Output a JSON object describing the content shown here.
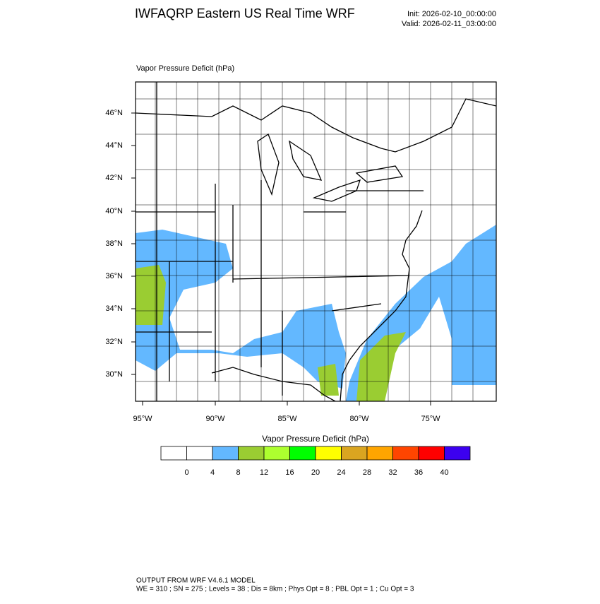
{
  "header": {
    "title": "IWFAQRP Eastern US Real Time WRF",
    "init": "Init: 2026-02-10_00:00:00",
    "valid": "Valid: 2026-02-11_03:00:00"
  },
  "map": {
    "subtitle": "Vapor Pressure Deficit   (hPa)",
    "lat_labels": [
      "46°N",
      "44°N",
      "42°N",
      "40°N",
      "38°N",
      "36°N",
      "34°N",
      "32°N",
      "30°N"
    ],
    "lon_labels": [
      "95°W",
      "90°W",
      "85°W",
      "80°W",
      "75°W"
    ]
  },
  "colorbar": {
    "title": "Vapor Pressure Deficit  (hPa)",
    "colors": [
      "#ffffff",
      "#ffffff",
      "#63b8ff",
      "#9acd32",
      "#adff2f",
      "#00ff00",
      "#ffff00",
      "#daa520",
      "#ffa500",
      "#ff4500",
      "#ff0000",
      "#3c00f0"
    ],
    "labels": [
      0,
      4,
      8,
      12,
      16,
      20,
      24,
      28,
      32,
      36,
      40
    ]
  },
  "footer": {
    "line1": "OUTPUT FROM WRF V4.6.1 MODEL",
    "line2": "WE = 310 ; SN = 275 ; Levels = 38 ; Dis = 8km ; Phys Opt = 8 ; PBL Opt = 1 ; Cu Opt = 3"
  }
}
